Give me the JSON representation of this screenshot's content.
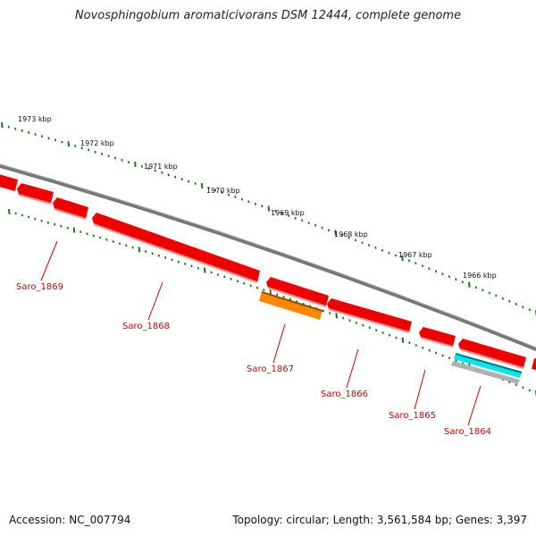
{
  "title": "Novosphingobium aromaticivorans DSM 12444, complete genome",
  "footer": {
    "accession": "Accession: NC_007794",
    "summary": "Topology: circular; Length: 3,561,584 bp; Genes: 3,397"
  },
  "ruler": {
    "ticks": [
      {
        "label": "1973 kbp"
      },
      {
        "label": "1972 kbp"
      },
      {
        "label": "1971 kbp"
      },
      {
        "label": "1970 kbp"
      },
      {
        "label": "1969 kbp"
      },
      {
        "label": "1968 kbp"
      },
      {
        "label": "1967 kbp"
      },
      {
        "label": "1966 kbp"
      }
    ]
  },
  "genes": [
    {
      "label": "Saro_1869"
    },
    {
      "label": "Saro_1868"
    },
    {
      "label": "Saro_1867"
    },
    {
      "label": "Saro_1866"
    },
    {
      "label": "Saro_1865"
    },
    {
      "label": "Saro_1864"
    }
  ],
  "colors": {
    "cds": "#ee0000",
    "cds_alt": "#ff8800",
    "rna": "#00e5ee",
    "gene_grey": "#b0b0b0",
    "backbone": "#888888",
    "ticks": "#1a7a1a",
    "label": "#cc0000"
  }
}
